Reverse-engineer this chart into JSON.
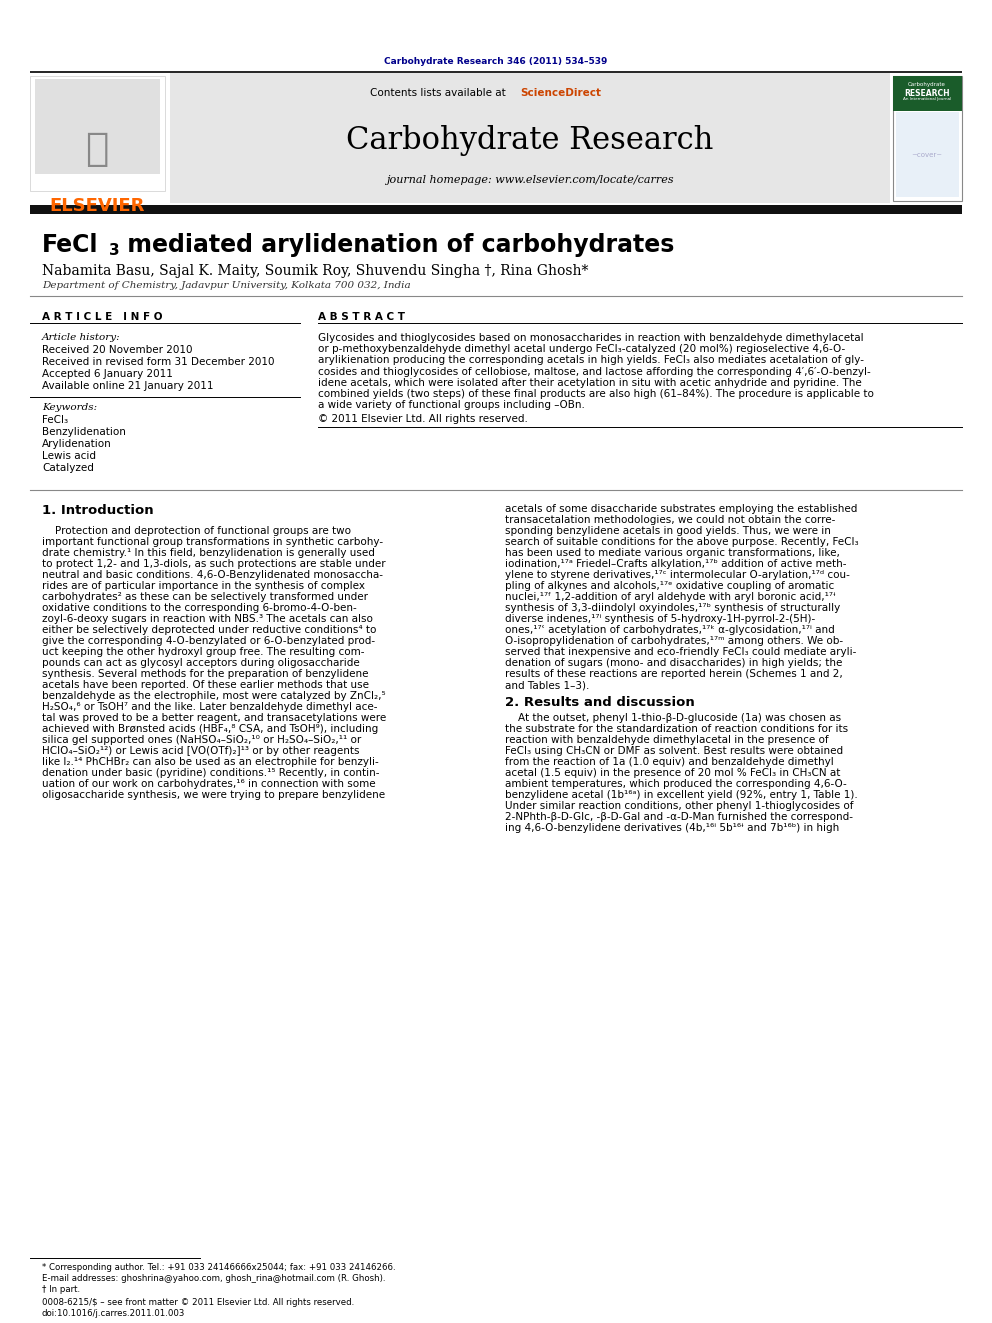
{
  "journal_ref": "Carbohydrate Research 346 (2011) 534–539",
  "journal_title": "Carbohydrate Research",
  "journal_homepage": "journal homepage: www.elsevier.com/locate/carres",
  "contents_line": "Contents lists available at ",
  "sciencedirect": "ScienceDirect",
  "elsevier_text": "ELSEVIER",
  "article_title_pre": "FeCl",
  "article_title_sub": "3",
  "article_title_post": " mediated arylidenation of carbohydrates",
  "authors": "Nabamita Basu, Sajal K. Maity, Soumik Roy, Shuvendu Singha †, Rina Ghosh*",
  "affiliation": "Department of Chemistry, Jadavpur University, Kolkata 700 032, India",
  "article_info_header": "A R T I C L E   I N F O",
  "abstract_header": "A B S T R A C T",
  "article_history_label": "Article history:",
  "received1": "Received 20 November 2010",
  "received2": "Received in revised form 31 December 2010",
  "accepted": "Accepted 6 January 2011",
  "available": "Available online 21 January 2011",
  "keywords_label": "Keywords:",
  "keywords": [
    "FeCl₃",
    "Benzylidenation",
    "Arylidenation",
    "Lewis acid",
    "Catalyzed"
  ],
  "copyright_text": "© 2011 Elsevier Ltd. All rights reserved.",
  "intro_header": "1. Introduction",
  "results_header": "2. Results and discussion",
  "footnote1": "* Corresponding author. Tel.: +91 033 24146666x25044; fax: +91 033 24146266.",
  "footnote2": "E-mail addresses: ghoshrina@yahoo.com, ghosh_rina@hotmail.com (R. Ghosh).",
  "footnote3": "† In part.",
  "bottom_line1": "0008-6215/$ – see front matter © 2011 Elsevier Ltd. All rights reserved.",
  "bottom_line2": "doi:10.1016/j.carres.2011.01.003",
  "bg_color": "#ffffff",
  "dark_navy": "#00008B",
  "elsevier_orange": "#ff6600",
  "link_orange": "#cc4400",
  "gray_bg": "#e6e6e6",
  "dark_bar_color": "#111111",
  "separator_color": "#888888",
  "abstract_lines": [
    "Glycosides and thioglycosides based on monosaccharides in reaction with benzaldehyde dimethylacetal",
    "or p-methoxybenzaldehyde dimethyl acetal undergo FeCl₃-catalyzed (20 mol%) regioselective 4,6-O-",
    "arylikienation producing the corresponding acetals in high yields. FeCl₃ also mediates acetalation of gly-",
    "cosides and thioglycosides of cellobiose, maltose, and lactose affording the corresponding 4′,6′-O-benzyl-",
    "idene acetals, which were isolated after their acetylation in situ with acetic anhydride and pyridine. The",
    "combined yields (two steps) of these final products are also high (61–84%). The procedure is applicable to",
    "a wide variety of functional groups including –OBn."
  ],
  "intro_left_lines": [
    "    Protection and deprotection of functional groups are two",
    "important functional group transformations in synthetic carbohy-",
    "drate chemistry.¹ In this field, benzylidenation is generally used",
    "to protect 1,2- and 1,3-diols, as such protections are stable under",
    "neutral and basic conditions. 4,6-O-Benzylidenated monosaccha-",
    "rides are of particular importance in the synthesis of complex",
    "carbohydrates² as these can be selectively transformed under",
    "oxidative conditions to the corresponding 6-bromo-4-O-ben-",
    "zoyl-6-deoxy sugars in reaction with NBS.³ The acetals can also",
    "either be selectively deprotected under reductive conditions⁴ to",
    "give the corresponding 4-O-benzylated or 6-O-benzylated prod-",
    "uct keeping the other hydroxyl group free. The resulting com-",
    "pounds can act as glycosyl acceptors during oligosaccharide",
    "synthesis. Several methods for the preparation of benzylidene",
    "acetals have been reported. Of these earlier methods that use",
    "benzaldehyde as the electrophile, most were catalyzed by ZnCl₂,⁵",
    "H₂SO₄,⁶ or TsOH⁷ and the like. Later benzaldehyde dimethyl ace-",
    "tal was proved to be a better reagent, and transacetylations were",
    "achieved with Brønsted acids (HBF₄,⁸ CSA, and TsOH⁹), including",
    "silica gel supported ones (NaHSO₄–SiO₂,¹⁰ or H₂SO₄–SiO₂,¹¹ or",
    "HClO₄–SiO₂¹²) or Lewis acid [VO(OTf)₂]¹³ or by other reagents",
    "like I₂.¹⁴ PhCHBr₂ can also be used as an electrophile for benzyli-",
    "denation under basic (pyridine) conditions.¹⁵ Recently, in contin-",
    "uation of our work on carbohydrates,¹⁶ in connection with some",
    "oligosaccharide synthesis, we were trying to prepare benzylidene"
  ],
  "intro_right_lines": [
    "acetals of some disaccharide substrates employing the established",
    "transacetalation methodologies, we could not obtain the corre-",
    "sponding benzylidene acetals in good yields. Thus, we were in",
    "search of suitable conditions for the above purpose. Recently, FeCl₃",
    "has been used to mediate various organic transformations, like,",
    "iodination,¹⁷ᵃ Friedel–Crafts alkylation,¹⁷ᵇ addition of active meth-",
    "ylene to styrene derivatives,¹⁷ᶜ intermolecular O-arylation,¹⁷ᵈ cou-",
    "pling of alkynes and alcohols,¹⁷ᵉ oxidative coupling of aromatic",
    "nuclei,¹⁷ᶠ 1,2-addition of aryl aldehyde with aryl boronic acid,¹⁷ᶤ",
    "synthesis of 3,3-diindolyl oxyindoles,¹⁷ᵇ synthesis of structurally",
    "diverse indenes,¹⁷ⁱ synthesis of 5-hydroxy-1H-pyrrol-2-(5H)-",
    "ones,¹⁷ʿ acetylation of carbohydrates,¹⁷ᵏ α-glycosidation,¹⁷ⁱ and",
    "O-isopropylidenation of carbohydrates,¹⁷ᵐ among others. We ob-",
    "served that inexpensive and eco-friendly FeCl₃ could mediate aryli-",
    "denation of sugars (mono- and disaccharides) in high yields; the",
    "results of these reactions are reported herein (Schemes 1 and 2,",
    "and Tables 1–3)."
  ],
  "results_lines": [
    "    At the outset, phenyl 1-thio-β-D-glucoside (1a) was chosen as",
    "the substrate for the standardization of reaction conditions for its",
    "reaction with benzaldehyde dimethylacetal in the presence of",
    "FeCl₃ using CH₃CN or DMF as solvent. Best results were obtained",
    "from the reaction of 1a (1.0 equiv) and benzaldehyde dimethyl",
    "acetal (1.5 equiv) in the presence of 20 mol % FeCl₃ in CH₃CN at",
    "ambient temperatures, which produced the corresponding 4,6-O-",
    "benzylidene acetal (1b¹⁶ᵃ) in excellent yield (92%, entry 1, Table 1).",
    "Under similar reaction conditions, other phenyl 1-thioglycosides of",
    "2-NPhth-β-D-Glc, -β-D-Gal and -α-D-Man furnished the correspond-",
    "ing 4,6-O-benzylidene derivatives (4b,¹⁶ⁱ 5b¹⁶ᶤ and 7b¹⁶ᵇ) in high"
  ]
}
